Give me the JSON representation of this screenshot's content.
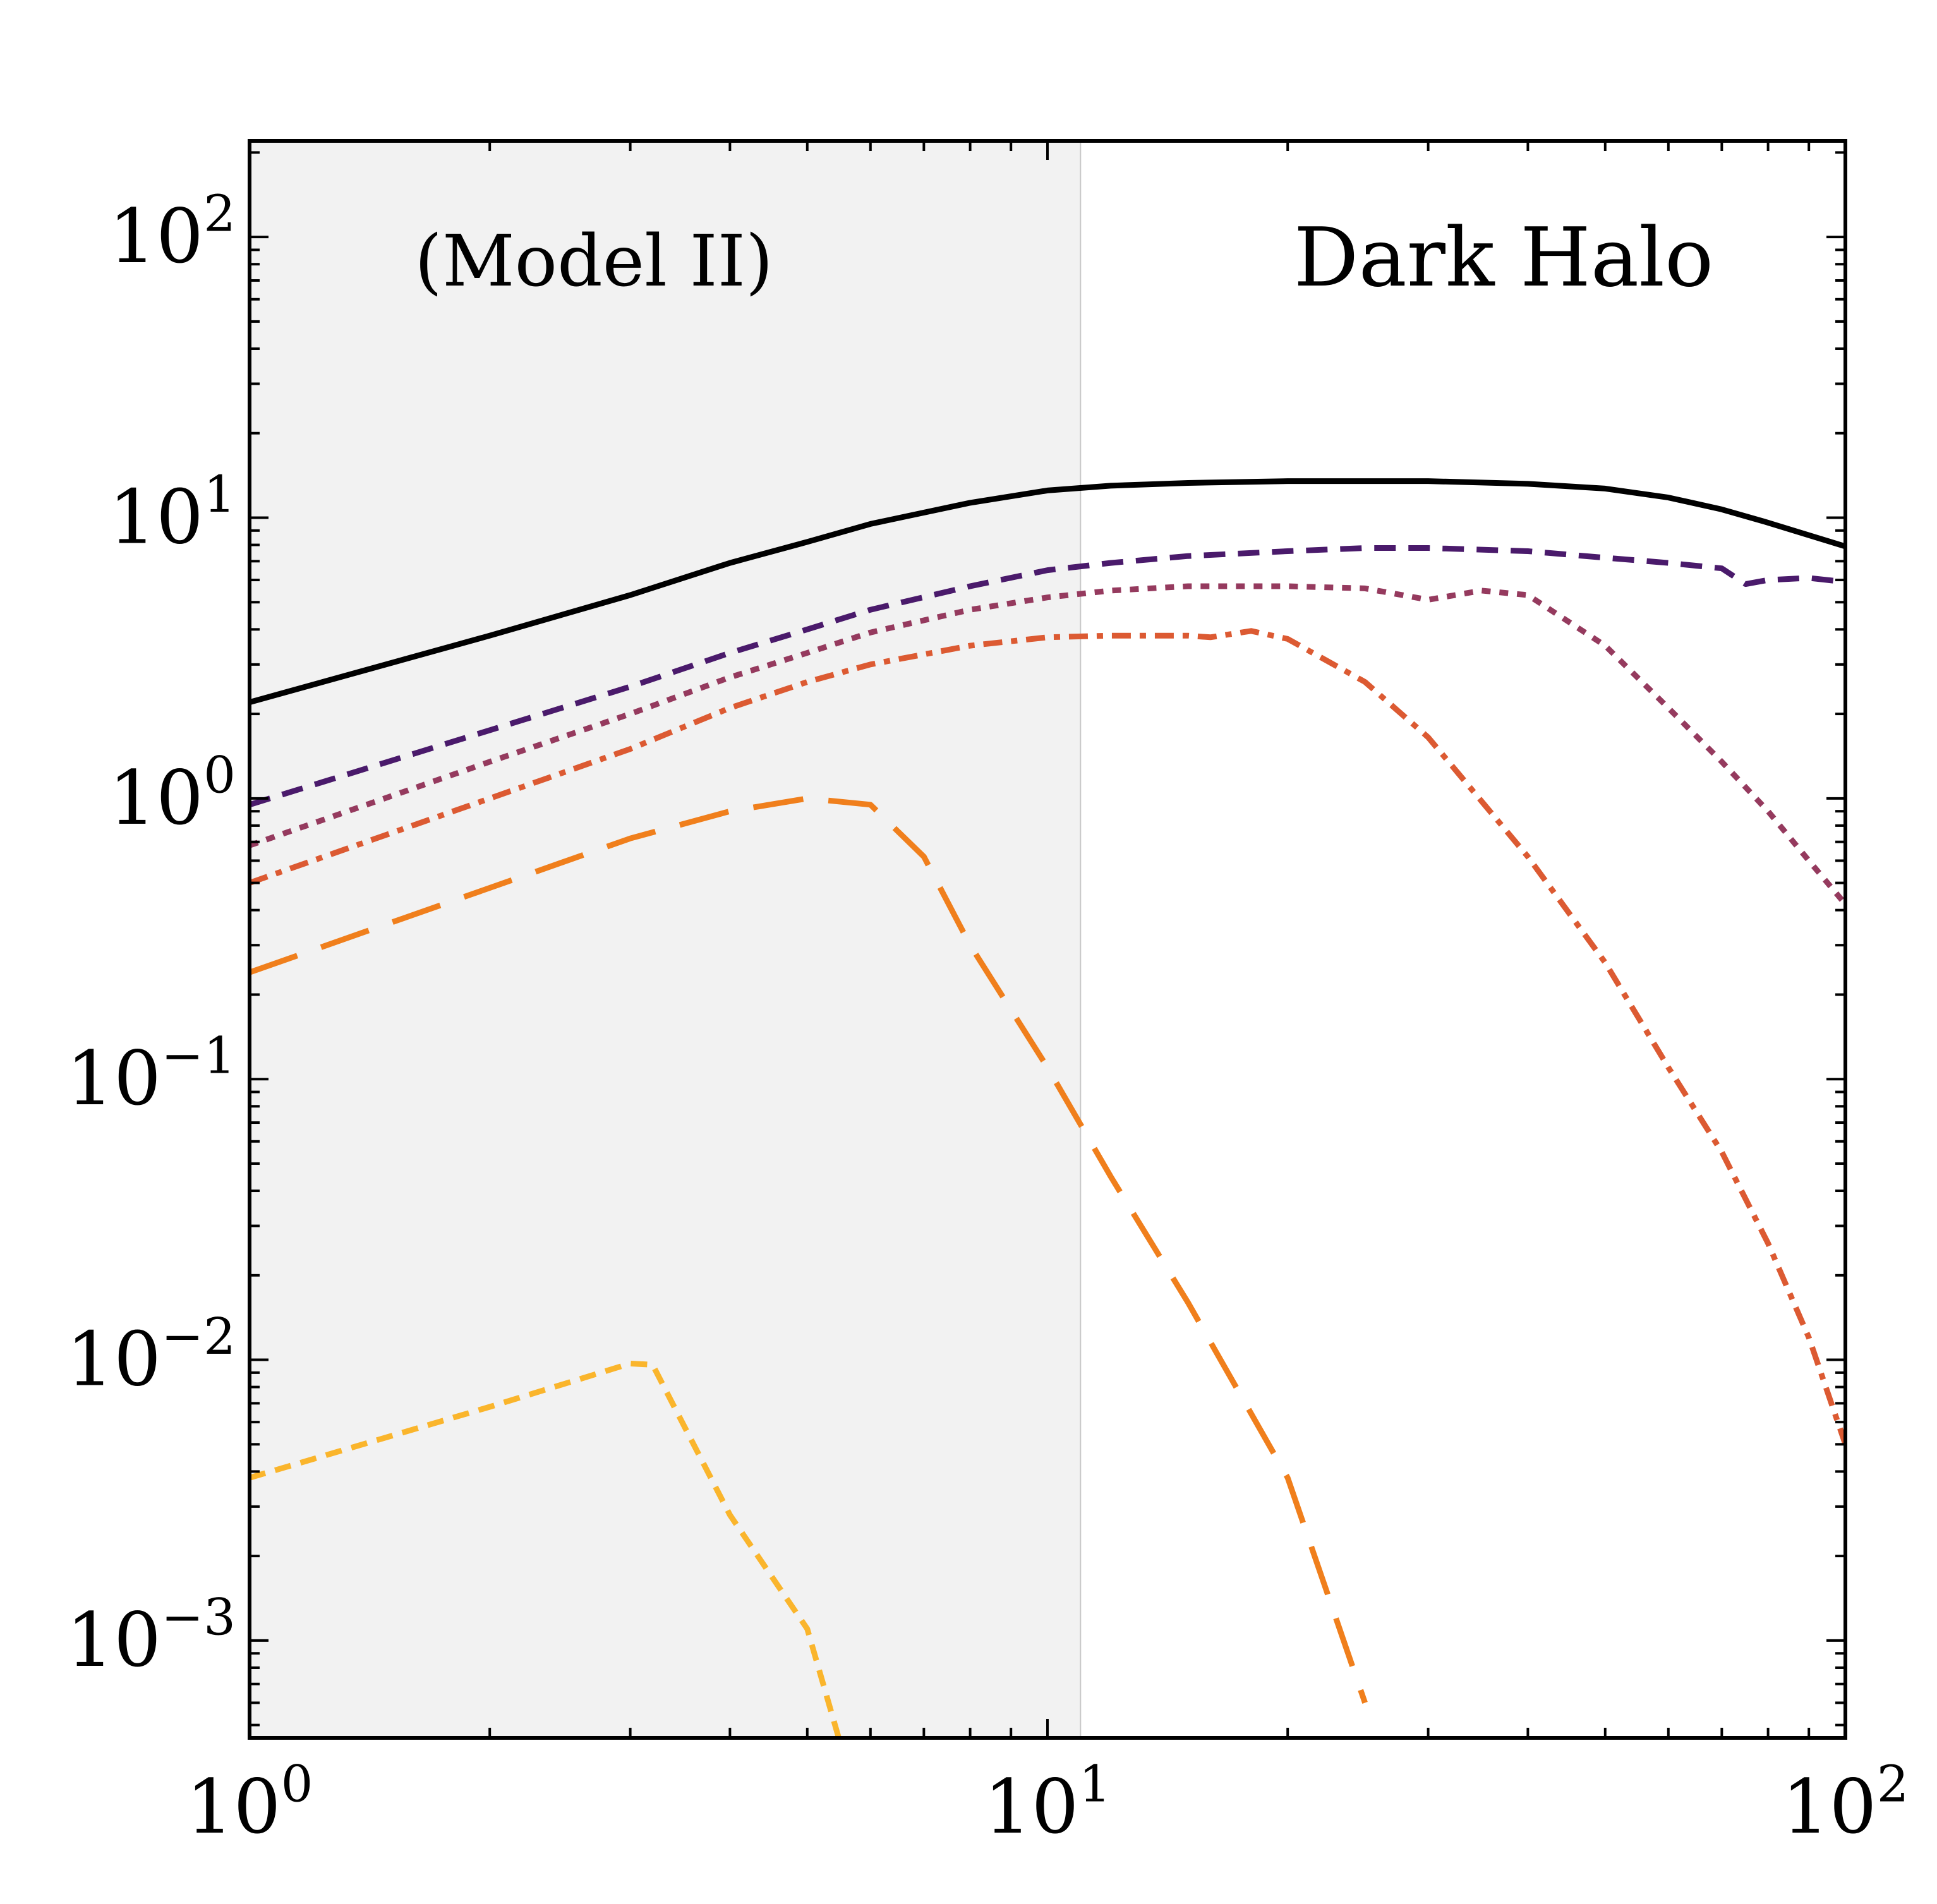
{
  "chart_data": {
    "type": "line",
    "title": "",
    "xlabel": "",
    "ylabel": "",
    "x_scale": "log",
    "y_scale": "log",
    "xlim": [
      1,
      100
    ],
    "ylim": [
      0.00045,
      220
    ],
    "x_ticks": [
      {
        "value": 1,
        "base": "10",
        "exp": "0"
      },
      {
        "value": 10,
        "base": "10",
        "exp": "1"
      },
      {
        "value": 100,
        "base": "10",
        "exp": "2"
      }
    ],
    "y_ticks": [
      {
        "value": 100,
        "base": "10",
        "exp": "2"
      },
      {
        "value": 10,
        "base": "10",
        "exp": "1"
      },
      {
        "value": 1,
        "base": "10",
        "exp": "0"
      },
      {
        "value": 0.1,
        "base": "10",
        "exp": "−1"
      },
      {
        "value": 0.01,
        "base": "10",
        "exp": "−2"
      },
      {
        "value": 0.001,
        "base": "10",
        "exp": "−3"
      }
    ],
    "shaded_region": {
      "x_from": 1,
      "x_to": 11,
      "color": "#f2f2f2"
    },
    "annotations": {
      "left": "(Model II)",
      "right": "Dark Halo"
    },
    "grid": false,
    "series": [
      {
        "style": "solid",
        "color": "#000000",
        "points": [
          [
            1,
            2.2
          ],
          [
            2,
            3.8
          ],
          [
            3,
            5.3
          ],
          [
            4,
            6.9
          ],
          [
            5,
            8.2
          ],
          [
            6,
            9.5
          ],
          [
            8,
            11.3
          ],
          [
            10,
            12.5
          ],
          [
            12,
            13.0
          ],
          [
            15,
            13.3
          ],
          [
            20,
            13.5
          ],
          [
            30,
            13.5
          ],
          [
            40,
            13.2
          ],
          [
            50,
            12.7
          ],
          [
            60,
            11.8
          ],
          [
            70,
            10.7
          ],
          [
            80,
            9.6
          ],
          [
            100,
            7.9
          ]
        ]
      },
      {
        "style": "dashed",
        "color": "#4a1a6b",
        "points": [
          [
            1,
            0.95
          ],
          [
            2,
            1.75
          ],
          [
            3,
            2.5
          ],
          [
            4,
            3.3
          ],
          [
            5,
            4.0
          ],
          [
            6,
            4.7
          ],
          [
            8,
            5.7
          ],
          [
            10,
            6.5
          ],
          [
            12,
            6.9
          ],
          [
            15,
            7.3
          ],
          [
            20,
            7.6
          ],
          [
            25,
            7.8
          ],
          [
            30,
            7.8
          ],
          [
            40,
            7.6
          ],
          [
            50,
            7.2
          ],
          [
            60,
            6.9
          ],
          [
            70,
            6.6
          ],
          [
            75,
            5.8
          ],
          [
            80,
            6.0
          ],
          [
            90,
            6.1
          ],
          [
            100,
            5.9
          ]
        ]
      },
      {
        "style": "dotted",
        "color": "#953a5e",
        "points": [
          [
            1,
            0.68
          ],
          [
            2,
            1.35
          ],
          [
            3,
            2.0
          ],
          [
            4,
            2.7
          ],
          [
            5,
            3.3
          ],
          [
            6,
            3.9
          ],
          [
            8,
            4.7
          ],
          [
            10,
            5.2
          ],
          [
            12,
            5.5
          ],
          [
            15,
            5.7
          ],
          [
            20,
            5.7
          ],
          [
            25,
            5.6
          ],
          [
            30,
            5.1
          ],
          [
            35,
            5.5
          ],
          [
            40,
            5.3
          ],
          [
            50,
            3.5
          ],
          [
            60,
            2.1
          ],
          [
            70,
            1.35
          ],
          [
            80,
            0.9
          ],
          [
            90,
            0.6
          ],
          [
            100,
            0.42
          ]
        ]
      },
      {
        "style": "dashdot",
        "color": "#dc5a32",
        "points": [
          [
            1,
            0.5
          ],
          [
            2,
            1.0
          ],
          [
            3,
            1.5
          ],
          [
            4,
            2.1
          ],
          [
            5,
            2.6
          ],
          [
            6,
            3.0
          ],
          [
            8,
            3.5
          ],
          [
            10,
            3.75
          ],
          [
            12,
            3.8
          ],
          [
            15,
            3.8
          ],
          [
            16,
            3.75
          ],
          [
            18,
            3.95
          ],
          [
            20,
            3.7
          ],
          [
            25,
            2.6
          ],
          [
            30,
            1.65
          ],
          [
            40,
            0.62
          ],
          [
            50,
            0.26
          ],
          [
            60,
            0.11
          ],
          [
            70,
            0.055
          ],
          [
            80,
            0.026
          ],
          [
            90,
            0.012
          ],
          [
            100,
            0.005
          ]
        ]
      },
      {
        "style": "longdash",
        "color": "#f07f1c",
        "points": [
          [
            1,
            0.24
          ],
          [
            2,
            0.48
          ],
          [
            3,
            0.72
          ],
          [
            4,
            0.9
          ],
          [
            5,
            1.0
          ],
          [
            6,
            0.95
          ],
          [
            7,
            0.62
          ],
          [
            8,
            0.3
          ],
          [
            10,
            0.11
          ],
          [
            12,
            0.045
          ],
          [
            15,
            0.016
          ],
          [
            20,
            0.0038
          ],
          [
            25,
            0.0006
          ]
        ]
      },
      {
        "style": "shortdash",
        "color": "#fab52c",
        "points": [
          [
            1,
            0.0038
          ],
          [
            2,
            0.0068
          ],
          [
            3,
            0.0097
          ],
          [
            3.2,
            0.0096
          ],
          [
            4,
            0.0028
          ],
          [
            5,
            0.0011
          ],
          [
            5.5,
            0.00043
          ]
        ]
      }
    ]
  }
}
